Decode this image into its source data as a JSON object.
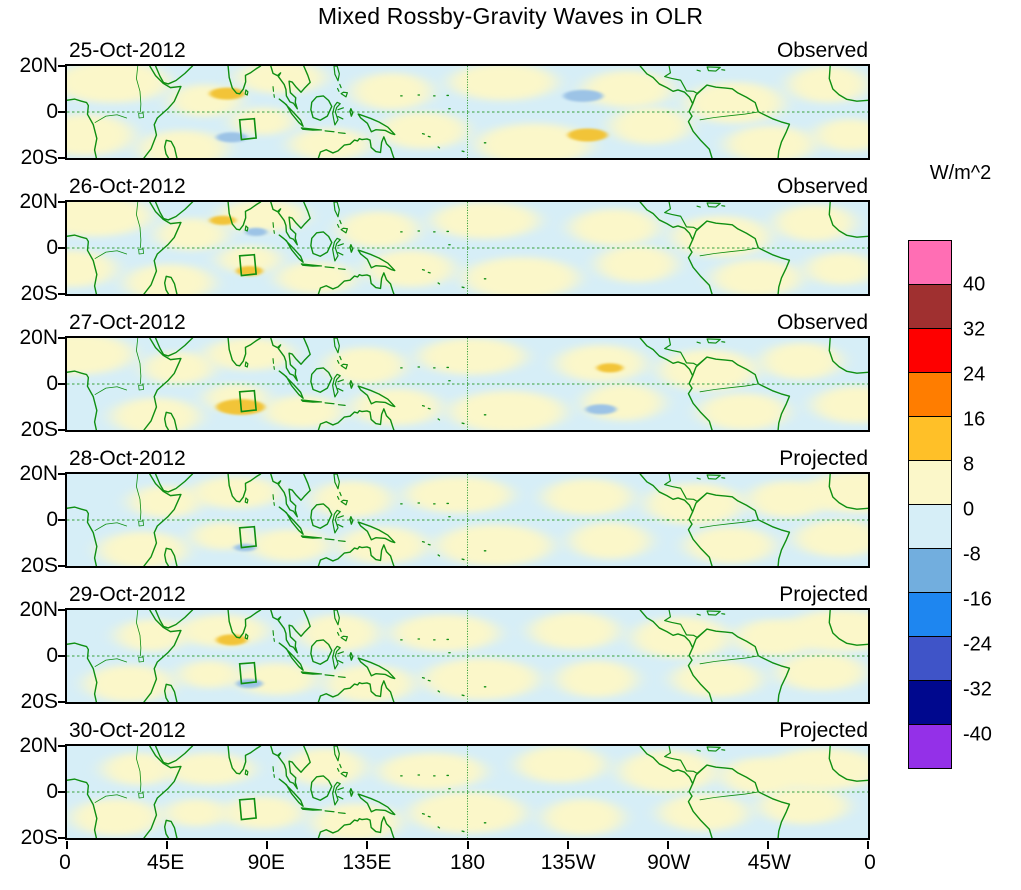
{
  "chart_data": {
    "type": "heatmap",
    "title": "Mixed Rossby-Gravity Waves in OLR",
    "x_axis": {
      "tick_labels": [
        "0",
        "45E",
        "90E",
        "135E",
        "180",
        "135W",
        "90W",
        "45W",
        "0"
      ]
    },
    "y_axis": {
      "tick_labels": [
        "20N",
        "0",
        "20S"
      ]
    },
    "colorbar": {
      "unit_label": "W/m^2",
      "tick_labels": [
        "40",
        "32",
        "24",
        "16",
        "8",
        "0",
        "-8",
        "-16",
        "-24",
        "-32",
        "-40"
      ],
      "colors_top_to_bottom": [
        "#ff6eb4",
        "#a03030",
        "#fe0000",
        "#ff7d00",
        "#ffc028",
        "#fbf7c9",
        "#d6eef7",
        "#72aede",
        "#1e86f0",
        "#3f54c8",
        "#00088e",
        "#9430e8"
      ]
    },
    "panels": [
      {
        "date": "25-Oct-2012",
        "status": "Observed",
        "features": [
          [
            20,
            13,
            26,
            9,
            "pw"
          ],
          [
            8,
            -10,
            22,
            9,
            "pw"
          ],
          [
            52,
            -16,
            20,
            8,
            "pw"
          ],
          [
            62,
            5,
            16,
            7,
            "pw"
          ],
          [
            96,
            15,
            20,
            7,
            "pw"
          ],
          [
            88,
            -4,
            14,
            6,
            "pw"
          ],
          [
            118,
            -14,
            18,
            7,
            "pw"
          ],
          [
            146,
            9,
            18,
            8,
            "pw"
          ],
          [
            160,
            -8,
            20,
            8,
            "pw"
          ],
          [
            196,
            13,
            24,
            8,
            "pw"
          ],
          [
            210,
            -14,
            26,
            9,
            "pw"
          ],
          [
            252,
            10,
            20,
            8,
            "pw"
          ],
          [
            262,
            -6,
            18,
            8,
            "pw"
          ],
          [
            300,
            4,
            22,
            9,
            "pw"
          ],
          [
            316,
            -14,
            20,
            8,
            "pw"
          ],
          [
            342,
            12,
            18,
            8,
            "pw"
          ],
          [
            352,
            -10,
            16,
            7,
            "pw"
          ],
          [
            72,
            8,
            8,
            2.6,
            "ps"
          ],
          [
            74,
            -11,
            7,
            2.2,
            "ns"
          ],
          [
            232,
            7,
            9,
            2.6,
            "ns"
          ],
          [
            234,
            -10,
            9,
            2.8,
            "ps"
          ]
        ]
      },
      {
        "date": "26-Oct-2012",
        "status": "Observed",
        "features": [
          [
            12,
            14,
            26,
            9,
            "pw"
          ],
          [
            2,
            -9,
            20,
            8,
            "pw"
          ],
          [
            46,
            -15,
            20,
            8,
            "pw"
          ],
          [
            56,
            6,
            16,
            7,
            "pw"
          ],
          [
            88,
            14,
            20,
            7,
            "pw"
          ],
          [
            82,
            -5,
            14,
            6,
            "pw"
          ],
          [
            112,
            -13,
            18,
            7,
            "pw"
          ],
          [
            140,
            8,
            18,
            8,
            "pw"
          ],
          [
            154,
            -9,
            20,
            8,
            "pw"
          ],
          [
            188,
            12,
            24,
            8,
            "pw"
          ],
          [
            204,
            -13,
            26,
            9,
            "pw"
          ],
          [
            246,
            9,
            20,
            8,
            "pw"
          ],
          [
            256,
            -7,
            18,
            8,
            "pw"
          ],
          [
            294,
            5,
            22,
            9,
            "pw"
          ],
          [
            310,
            -13,
            20,
            8,
            "pw"
          ],
          [
            336,
            11,
            18,
            8,
            "pw"
          ],
          [
            348,
            -9,
            16,
            7,
            "pw"
          ],
          [
            70,
            12,
            6,
            2,
            "ps"
          ],
          [
            82,
            -10,
            6,
            2.2,
            "ps"
          ],
          [
            85,
            7,
            5,
            1.8,
            "ns"
          ]
        ]
      },
      {
        "date": "27-Oct-2012",
        "status": "Observed",
        "features": [
          [
            4,
            13,
            26,
            9,
            "pw"
          ],
          [
            355,
            -9,
            20,
            8,
            "pw"
          ],
          [
            40,
            -14,
            20,
            8,
            "pw"
          ],
          [
            50,
            7,
            16,
            7,
            "pw"
          ],
          [
            82,
            13,
            20,
            7,
            "pw"
          ],
          [
            76,
            -6,
            14,
            6,
            "pw"
          ],
          [
            106,
            -12,
            18,
            7,
            "pw"
          ],
          [
            134,
            8,
            18,
            8,
            "pw"
          ],
          [
            148,
            -10,
            20,
            8,
            "pw"
          ],
          [
            182,
            12,
            24,
            8,
            "pw"
          ],
          [
            198,
            -12,
            26,
            9,
            "pw"
          ],
          [
            240,
            9,
            20,
            8,
            "pw"
          ],
          [
            250,
            -8,
            18,
            8,
            "pw"
          ],
          [
            288,
            6,
            22,
            9,
            "pw"
          ],
          [
            304,
            -12,
            20,
            8,
            "pw"
          ],
          [
            330,
            10,
            18,
            8,
            "pw"
          ],
          [
            78,
            -10,
            11,
            3.4,
            "ps"
          ],
          [
            244,
            7,
            6,
            2,
            "ps"
          ],
          [
            240,
            -11,
            7,
            2.2,
            "ns"
          ]
        ]
      },
      {
        "date": "28-Oct-2012",
        "status": "Projected",
        "features": [
          [
            356,
            12,
            26,
            9,
            "pw"
          ],
          [
            347,
            -8,
            20,
            8,
            "pw"
          ],
          [
            34,
            -13,
            20,
            8,
            "pw"
          ],
          [
            44,
            8,
            16,
            7,
            "pw"
          ],
          [
            76,
            12,
            20,
            7,
            "pw"
          ],
          [
            70,
            -7,
            14,
            6,
            "pw"
          ],
          [
            100,
            -11,
            18,
            7,
            "pw"
          ],
          [
            128,
            9,
            18,
            8,
            "pw"
          ],
          [
            142,
            -11,
            20,
            8,
            "pw"
          ],
          [
            176,
            11,
            24,
            8,
            "pw"
          ],
          [
            192,
            -11,
            26,
            9,
            "pw"
          ],
          [
            234,
            10,
            20,
            8,
            "pw"
          ],
          [
            244,
            -9,
            18,
            8,
            "pw"
          ],
          [
            282,
            7,
            22,
            9,
            "pw"
          ],
          [
            298,
            -11,
            20,
            8,
            "pw"
          ],
          [
            324,
            9,
            18,
            8,
            "pw"
          ],
          [
            80,
            -12,
            5,
            1.6,
            "ns"
          ]
        ]
      },
      {
        "date": "29-Oct-2012",
        "status": "Projected",
        "features": [
          [
            348,
            11,
            26,
            9,
            "pw"
          ],
          [
            339,
            -7,
            20,
            8,
            "pw"
          ],
          [
            28,
            -12,
            20,
            8,
            "pw"
          ],
          [
            38,
            9,
            16,
            7,
            "pw"
          ],
          [
            70,
            11,
            20,
            7,
            "pw"
          ],
          [
            64,
            -8,
            14,
            6,
            "pw"
          ],
          [
            94,
            -10,
            18,
            7,
            "pw"
          ],
          [
            122,
            10,
            18,
            8,
            "pw"
          ],
          [
            136,
            -12,
            20,
            8,
            "pw"
          ],
          [
            170,
            10,
            24,
            8,
            "pw"
          ],
          [
            186,
            -10,
            26,
            9,
            "pw"
          ],
          [
            228,
            11,
            20,
            8,
            "pw"
          ],
          [
            238,
            -10,
            18,
            8,
            "pw"
          ],
          [
            276,
            8,
            22,
            9,
            "pw"
          ],
          [
            292,
            -10,
            20,
            8,
            "pw"
          ],
          [
            318,
            8,
            18,
            8,
            "pw"
          ],
          [
            74,
            7,
            7,
            2.4,
            "ps"
          ],
          [
            82,
            -12,
            6,
            2,
            "ns"
          ]
        ]
      },
      {
        "date": "30-Oct-2012",
        "status": "Projected",
        "features": [
          [
            340,
            10,
            26,
            9,
            "pw"
          ],
          [
            331,
            -6,
            20,
            8,
            "pw"
          ],
          [
            22,
            -11,
            20,
            8,
            "pw"
          ],
          [
            32,
            10,
            16,
            7,
            "pw"
          ],
          [
            64,
            10,
            20,
            7,
            "pw"
          ],
          [
            58,
            -9,
            14,
            6,
            "pw"
          ],
          [
            88,
            -9,
            18,
            7,
            "pw"
          ],
          [
            116,
            11,
            18,
            8,
            "pw"
          ],
          [
            130,
            -13,
            20,
            8,
            "pw"
          ],
          [
            164,
            9,
            24,
            8,
            "pw"
          ],
          [
            180,
            -9,
            26,
            9,
            "pw"
          ],
          [
            222,
            12,
            20,
            8,
            "pw"
          ],
          [
            232,
            -11,
            18,
            8,
            "pw"
          ],
          [
            270,
            9,
            22,
            9,
            "pw"
          ],
          [
            286,
            -9,
            20,
            8,
            "pw"
          ],
          [
            312,
            7,
            18,
            8,
            "pw"
          ]
        ]
      }
    ]
  },
  "map_colors": {
    "ocean_base": "#d6eef7",
    "positive_weak": "#fbf7c9",
    "positive_strong": "#f2c438",
    "negative_weak": "#c9e6f3",
    "negative_strong": "#9cc3e6",
    "coastline": "#0f8f12",
    "gridline": "#3aa33e",
    "box": "#0f8f12"
  }
}
